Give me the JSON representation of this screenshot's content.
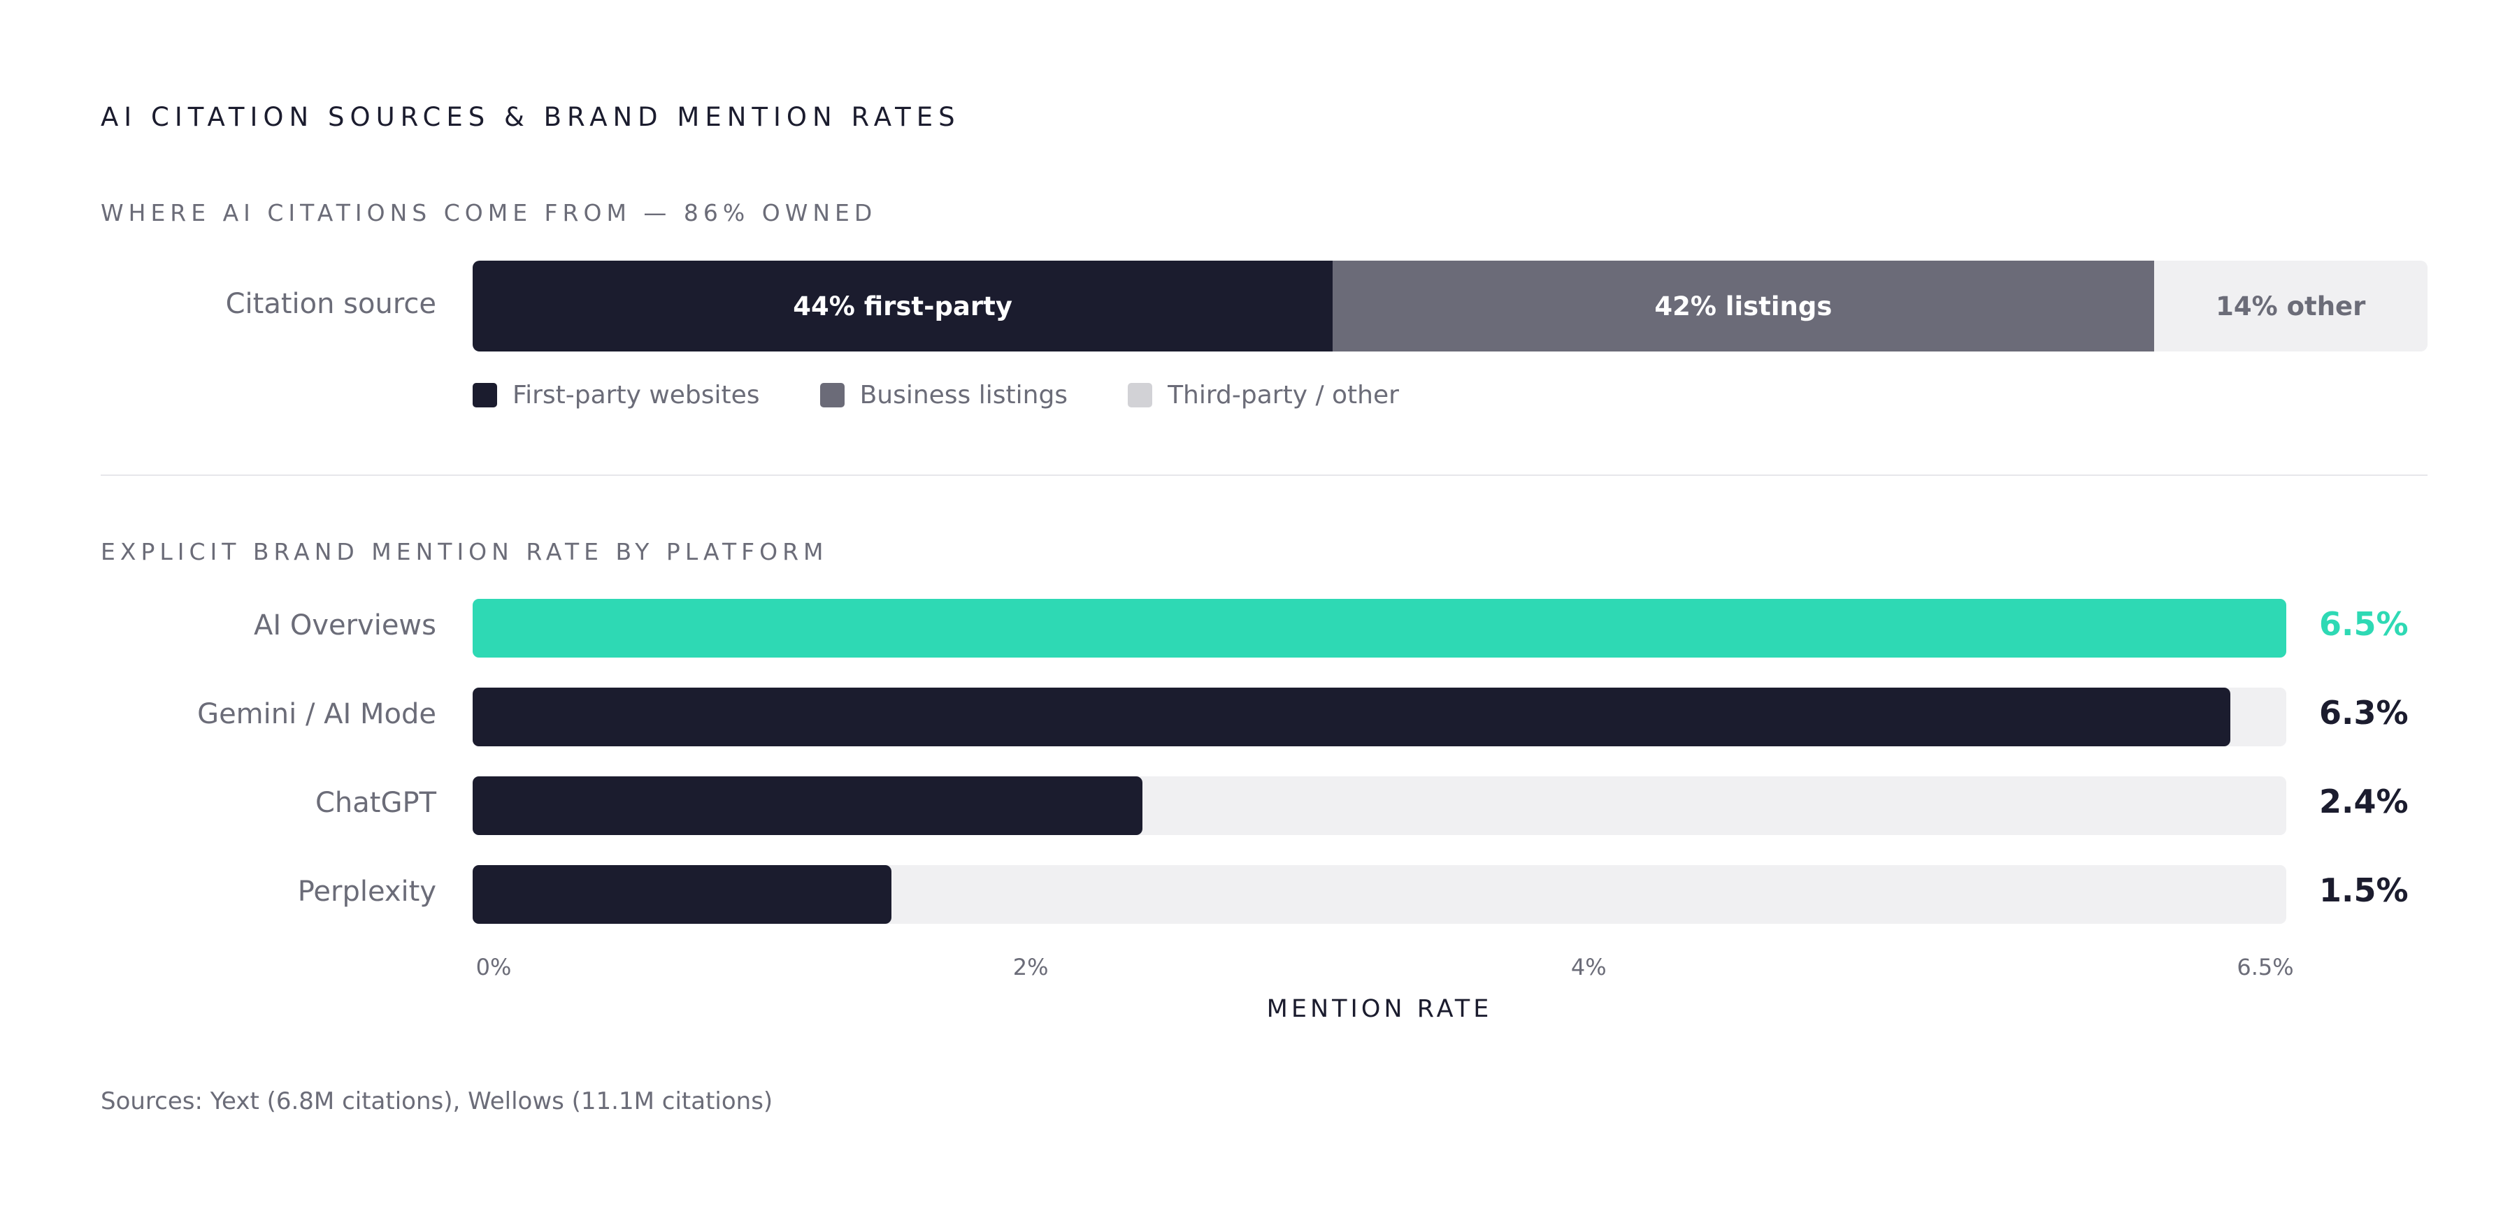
{
  "title": "AI CITATION SOURCES & BRAND MENTION RATES",
  "source_note": "Sources: Yext (6.8M citations), Wellows (11.1M citations)",
  "chart_data": [
    {
      "type": "bar",
      "stacked": true,
      "orientation": "horizontal",
      "title": "WHERE AI CITATIONS COME FROM — 86% OWNED",
      "categories": [
        "Citation source"
      ],
      "series": [
        {
          "name": "First-party websites",
          "values": [
            44
          ],
          "label": "44% first-party",
          "color": "#1b1c2e",
          "text_color": "#ffffff"
        },
        {
          "name": "Business listings",
          "values": [
            42
          ],
          "label": "42% listings",
          "color": "#6b6b78",
          "text_color": "#ffffff"
        },
        {
          "name": "Third-party / other",
          "values": [
            14
          ],
          "label": "14% other",
          "color": "#f0f0f2",
          "text_color": "#6b6c78"
        }
      ],
      "legend": [
        {
          "label": "First-party websites",
          "color": "#1b1c2e"
        },
        {
          "label": "Business listings",
          "color": "#6b6b78"
        },
        {
          "label": "Third-party / other",
          "color": "#d2d2d6"
        }
      ],
      "legend_position": "bottom-left"
    },
    {
      "type": "bar",
      "orientation": "horizontal",
      "title": "EXPLICIT BRAND MENTION RATE BY PLATFORM",
      "categories": [
        "AI Overviews",
        "Gemini / AI Mode",
        "ChatGPT",
        "Perplexity"
      ],
      "values": [
        6.5,
        6.3,
        2.4,
        1.5
      ],
      "value_labels": [
        "6.5%",
        "6.3%",
        "2.4%",
        "1.5%"
      ],
      "colors": [
        "#2ed9b4",
        "#1b1c2e",
        "#1b1c2e",
        "#1b1c2e"
      ],
      "value_label_colors": [
        "#2ed9b4",
        "#1b1c2e",
        "#1b1c2e",
        "#1b1c2e"
      ],
      "xlim": [
        0,
        6.5
      ],
      "xticks": [
        0,
        2,
        4,
        6.5
      ],
      "xtick_labels": [
        "0%",
        "2%",
        "4%",
        "6.5%"
      ],
      "xlabel": "MENTION RATE",
      "grid": false
    }
  ]
}
